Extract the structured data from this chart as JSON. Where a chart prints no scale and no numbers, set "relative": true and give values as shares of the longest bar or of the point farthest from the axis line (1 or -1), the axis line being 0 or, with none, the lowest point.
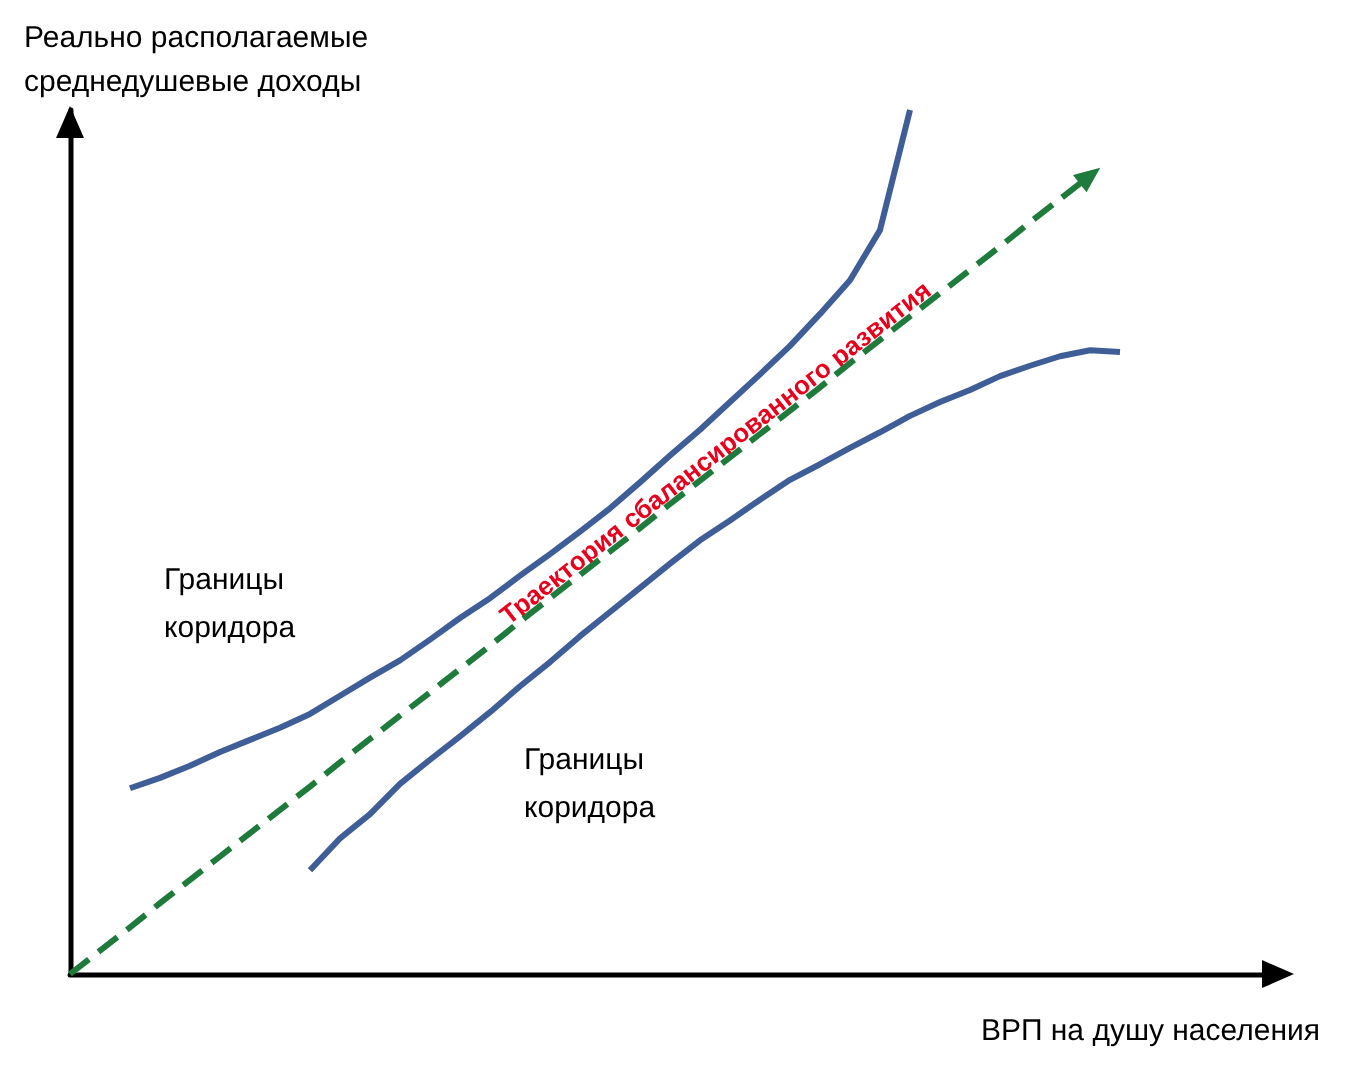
{
  "chart_data": {
    "type": "line",
    "relative": true,
    "xlabel": "ВРП на душу населения",
    "ylabel": "Реально располагаемые\nсреднедушевые доходы",
    "categories": [
      null,
      null,
      null,
      null,
      null,
      null,
      null,
      null,
      null,
      null,
      null,
      null,
      null,
      null,
      null,
      null,
      null,
      null,
      null,
      null,
      null,
      null,
      null,
      null,
      null,
      null,
      null,
      null,
      null,
      null,
      null,
      null,
      null,
      null,
      null,
      null,
      null,
      null,
      null,
      null,
      null
    ],
    "grid": false,
    "legend": false,
    "marker": "none",
    "annotations": [
      "Границы\nкоридора",
      "Границы\nкоридора"
    ],
    "series": [
      {
        "color": "#3f5e98",
        "line_style": "solid",
        "values": [
          null,
          null,
          0.215,
          0.227,
          0.241,
          0.257,
          0.271,
          0.285,
          0.301,
          0.322,
          0.343,
          0.363,
          0.387,
          0.412,
          0.435,
          0.461,
          0.486,
          0.512,
          0.539,
          0.569,
          0.6,
          0.63,
          0.662,
          0.694,
          0.727,
          0.764,
          0.803,
          0.861,
          1,
          null,
          null,
          null,
          null,
          null,
          null,
          null,
          null,
          null,
          null,
          null,
          null
        ]
      },
      {
        "color": "#3f5e98",
        "line_style": "solid",
        "values": [
          null,
          null,
          null,
          null,
          null,
          null,
          null,
          null,
          0.12,
          0.157,
          0.185,
          0.22,
          0.248,
          0.275,
          0.303,
          0.333,
          0.361,
          0.391,
          0.419,
          0.447,
          0.475,
          0.502,
          0.525,
          0.549,
          0.572,
          0.59,
          0.609,
          0.627,
          0.646,
          0.662,
          0.676,
          0.692,
          0.704,
          0.715,
          0.722,
          0.72,
          null,
          null,
          null,
          null,
          null
        ]
      },
      {
        "name": "Траектория сбалансированного развития",
        "color": "#1e7b3c",
        "line_style": "dashed",
        "values": [
          0,
          0.027,
          0.054,
          0.082,
          0.109,
          0.136,
          0.163,
          0.19,
          0.217,
          0.245,
          0.272,
          0.299,
          0.326,
          0.353,
          0.38,
          0.408,
          0.435,
          0.462,
          0.489,
          0.516,
          0.544,
          0.571,
          0.598,
          0.625,
          0.652,
          0.679,
          0.707,
          0.734,
          0.761,
          0.788,
          0.815,
          0.842,
          0.87,
          0.897,
          0.924,
          null,
          null,
          null,
          null,
          null,
          null
        ]
      }
    ]
  }
}
